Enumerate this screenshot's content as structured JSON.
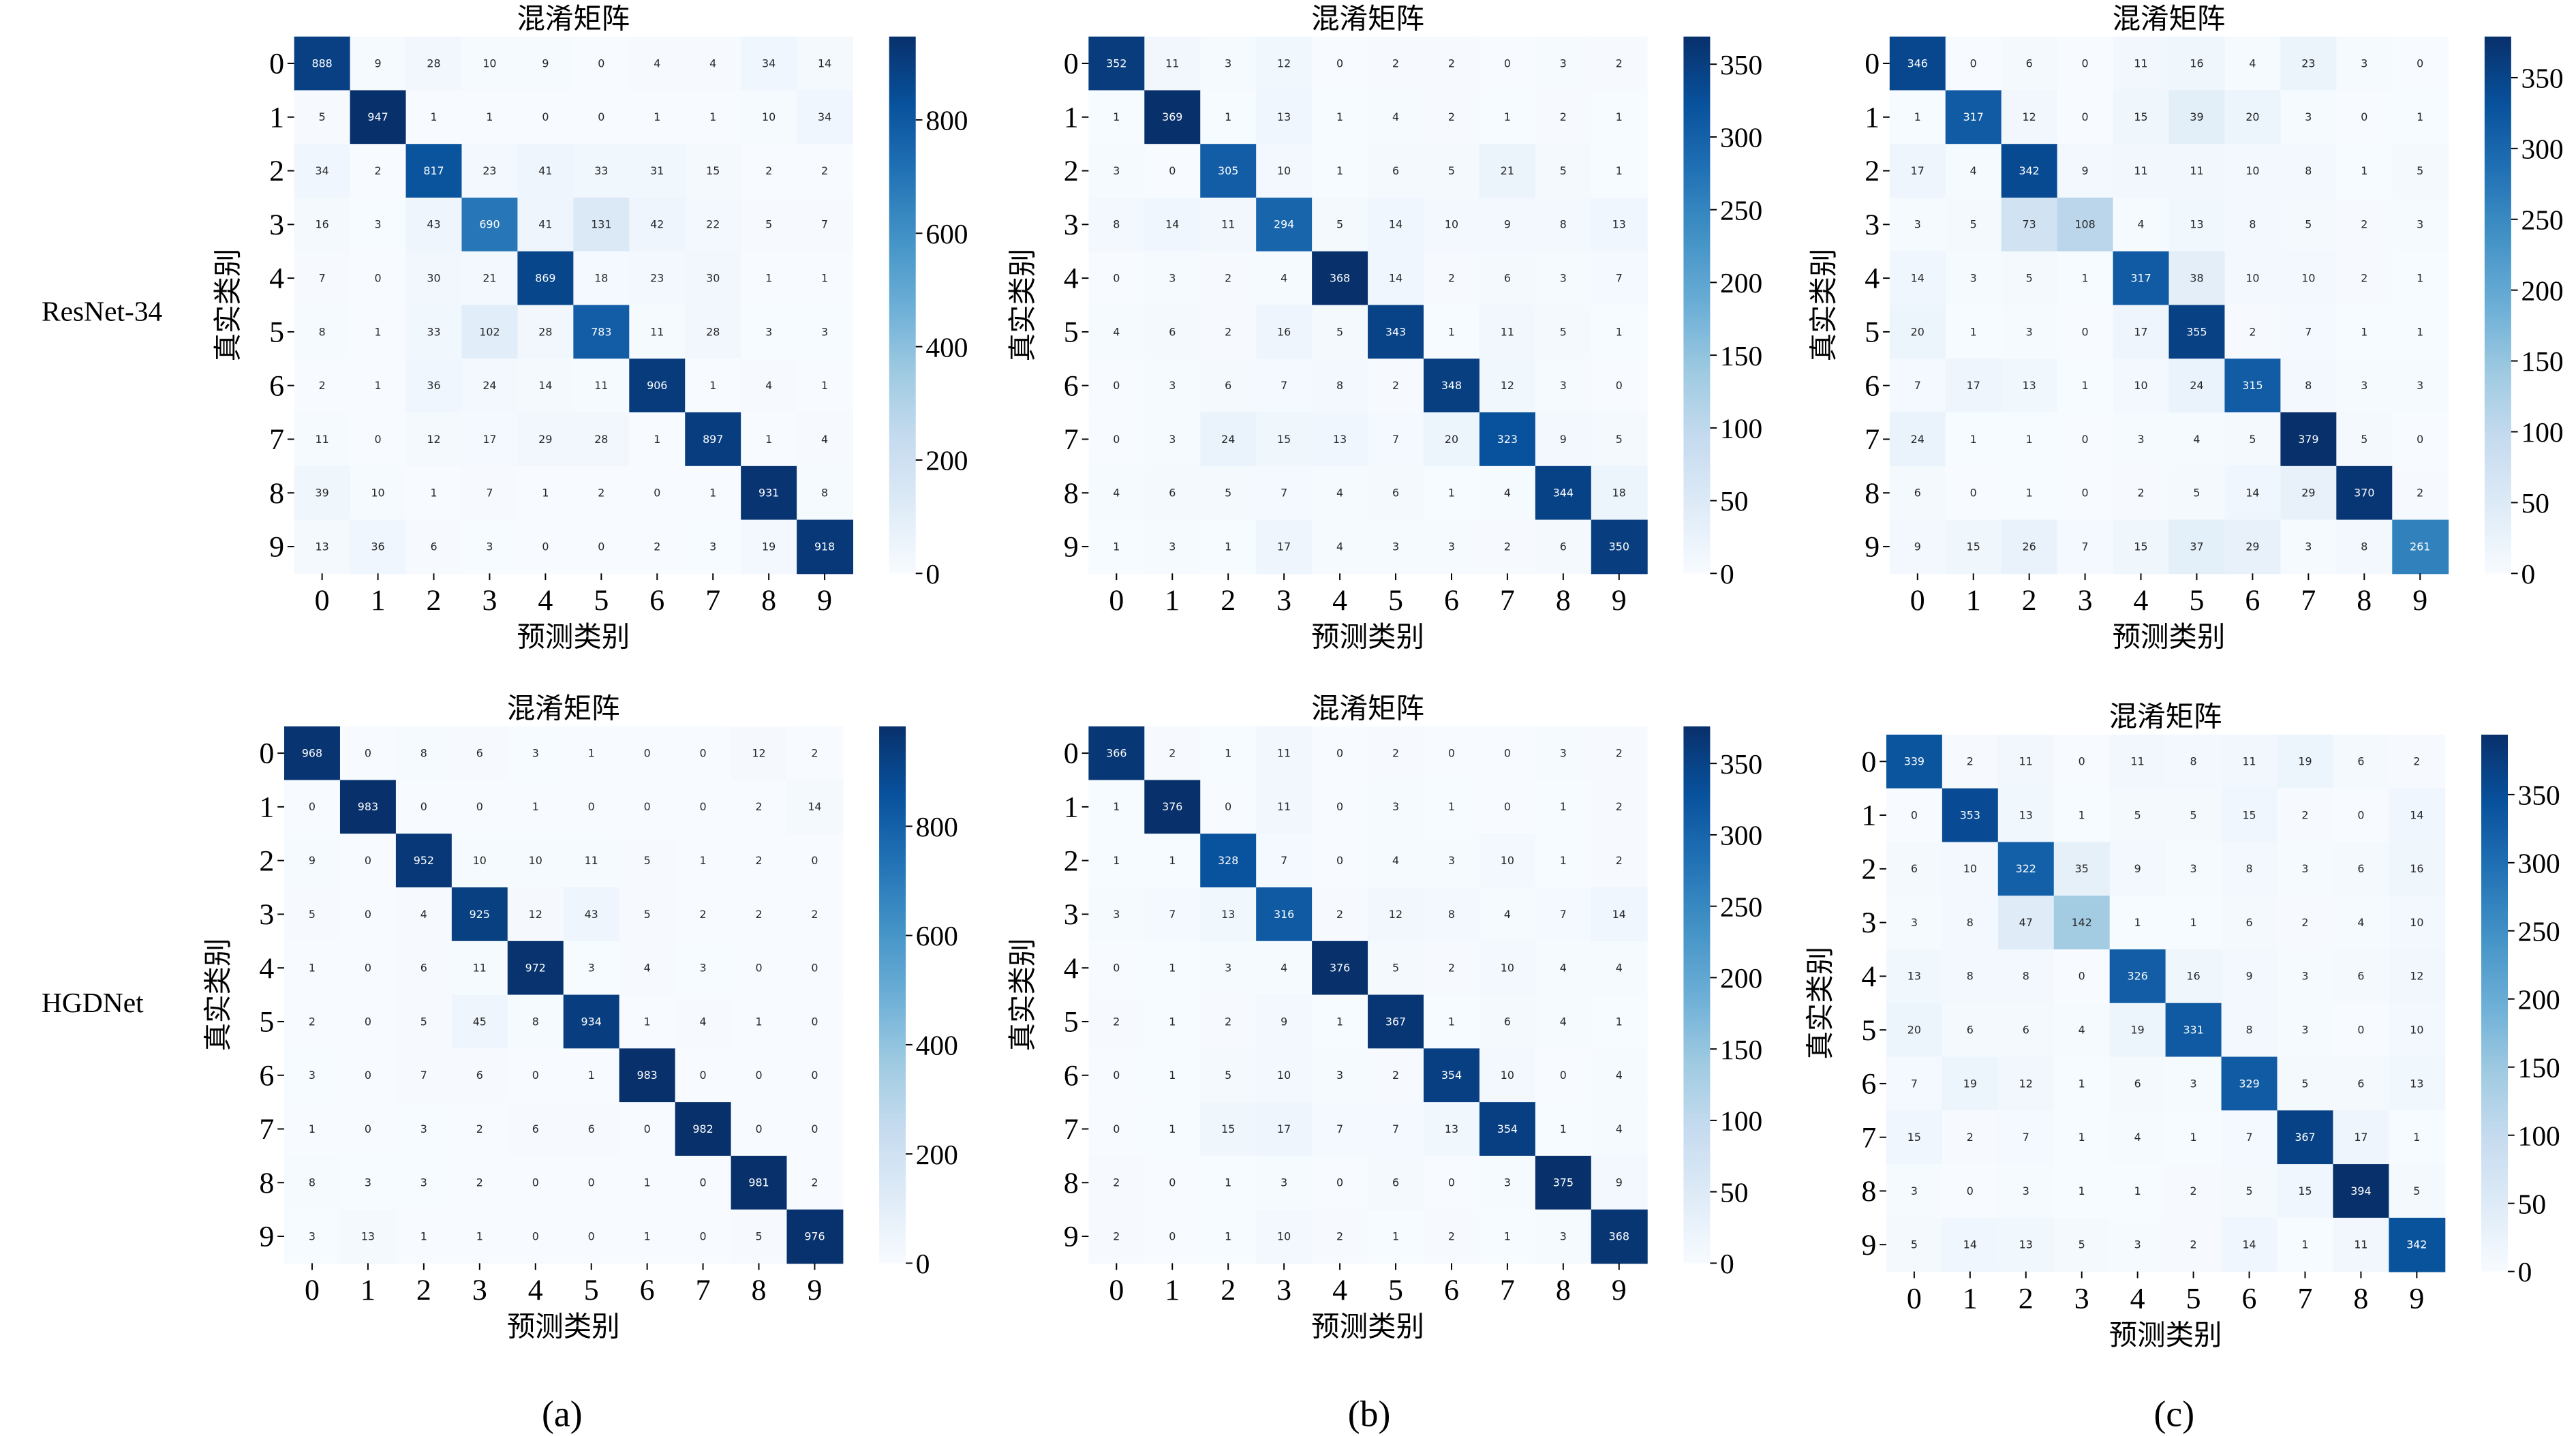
{
  "row_labels": [
    "ResNet-34",
    "HGDNet"
  ],
  "captions": [
    "(a)",
    "(b)",
    "(c)"
  ],
  "colormap": [
    "#f7fbff",
    "#deebf7",
    "#c6dbef",
    "#9ecae1",
    "#6baed6",
    "#4292c6",
    "#2171b5",
    "#08519c",
    "#08306b"
  ],
  "chart_data": [
    {
      "type": "heatmap",
      "title": "混淆矩阵",
      "xlabel": "预测类别",
      "ylabel": "真实类别",
      "xticks": [
        "0",
        "1",
        "2",
        "3",
        "4",
        "5",
        "6",
        "7",
        "8",
        "9"
      ],
      "yticks": [
        "0",
        "1",
        "2",
        "3",
        "4",
        "5",
        "6",
        "7",
        "8",
        "9"
      ],
      "vmin": 0,
      "vmax": 947,
      "colorbar_ticks": [
        "0",
        "200",
        "400",
        "600",
        "800"
      ],
      "values": [
        [
          888,
          9,
          28,
          10,
          9,
          0,
          4,
          4,
          34,
          14
        ],
        [
          5,
          947,
          1,
          1,
          0,
          0,
          1,
          1,
          10,
          34
        ],
        [
          34,
          2,
          817,
          23,
          41,
          33,
          31,
          15,
          2,
          2
        ],
        [
          16,
          3,
          43,
          690,
          41,
          131,
          42,
          22,
          5,
          7
        ],
        [
          7,
          0,
          30,
          21,
          869,
          18,
          23,
          30,
          1,
          1
        ],
        [
          8,
          1,
          33,
          102,
          28,
          783,
          11,
          28,
          3,
          3
        ],
        [
          2,
          1,
          36,
          24,
          14,
          11,
          906,
          1,
          4,
          1
        ],
        [
          11,
          0,
          12,
          17,
          29,
          28,
          1,
          897,
          1,
          4
        ],
        [
          39,
          10,
          1,
          7,
          1,
          2,
          0,
          1,
          931,
          8
        ],
        [
          13,
          36,
          6,
          3,
          0,
          0,
          2,
          3,
          19,
          918
        ]
      ]
    },
    {
      "type": "heatmap",
      "title": "混淆矩阵",
      "xlabel": "预测类别",
      "ylabel": "真实类别",
      "xticks": [
        "0",
        "1",
        "2",
        "3",
        "4",
        "5",
        "6",
        "7",
        "8",
        "9"
      ],
      "yticks": [
        "0",
        "1",
        "2",
        "3",
        "4",
        "5",
        "6",
        "7",
        "8",
        "9"
      ],
      "vmin": 0,
      "vmax": 369,
      "colorbar_ticks": [
        "0",
        "50",
        "100",
        "150",
        "200",
        "250",
        "300",
        "350"
      ],
      "values": [
        [
          352,
          11,
          3,
          12,
          0,
          2,
          2,
          0,
          3,
          2
        ],
        [
          1,
          369,
          1,
          13,
          1,
          4,
          2,
          1,
          2,
          1
        ],
        [
          3,
          0,
          305,
          10,
          1,
          6,
          5,
          21,
          5,
          1
        ],
        [
          8,
          14,
          11,
          294,
          5,
          14,
          10,
          9,
          8,
          13
        ],
        [
          0,
          3,
          2,
          4,
          368,
          14,
          2,
          6,
          3,
          7
        ],
        [
          4,
          6,
          2,
          16,
          5,
          343,
          1,
          11,
          5,
          1
        ],
        [
          0,
          3,
          6,
          7,
          8,
          2,
          348,
          12,
          3,
          0
        ],
        [
          0,
          3,
          24,
          15,
          13,
          7,
          20,
          323,
          9,
          5
        ],
        [
          4,
          6,
          5,
          7,
          4,
          6,
          1,
          4,
          344,
          18
        ],
        [
          1,
          3,
          1,
          17,
          4,
          3,
          3,
          2,
          6,
          350
        ]
      ]
    },
    {
      "type": "heatmap",
      "title": "混淆矩阵",
      "xlabel": "预测类别",
      "ylabel": "真实类别",
      "xticks": [
        "0",
        "1",
        "2",
        "3",
        "4",
        "5",
        "6",
        "7",
        "8",
        "9"
      ],
      "yticks": [
        "0",
        "1",
        "2",
        "3",
        "4",
        "5",
        "6",
        "7",
        "8",
        "9"
      ],
      "vmin": 0,
      "vmax": 379,
      "colorbar_ticks": [
        "0",
        "50",
        "100",
        "150",
        "200",
        "250",
        "300",
        "350"
      ],
      "values": [
        [
          346,
          0,
          6,
          0,
          11,
          16,
          4,
          23,
          3,
          0
        ],
        [
          1,
          317,
          12,
          0,
          15,
          39,
          20,
          3,
          0,
          1
        ],
        [
          17,
          4,
          342,
          9,
          11,
          11,
          10,
          8,
          1,
          5
        ],
        [
          3,
          5,
          73,
          108,
          4,
          13,
          8,
          5,
          2,
          3
        ],
        [
          14,
          3,
          5,
          1,
          317,
          38,
          10,
          10,
          2,
          1
        ],
        [
          20,
          1,
          3,
          0,
          17,
          355,
          2,
          7,
          1,
          1
        ],
        [
          7,
          17,
          13,
          1,
          10,
          24,
          315,
          8,
          3,
          3
        ],
        [
          24,
          1,
          1,
          0,
          3,
          4,
          5,
          379,
          5,
          0
        ],
        [
          6,
          0,
          1,
          0,
          2,
          5,
          14,
          29,
          370,
          2
        ],
        [
          9,
          15,
          26,
          7,
          15,
          37,
          29,
          3,
          8,
          261
        ]
      ]
    },
    {
      "type": "heatmap",
      "title": "混淆矩阵",
      "xlabel": "预测类别",
      "ylabel": "真实类别",
      "xticks": [
        "0",
        "1",
        "2",
        "3",
        "4",
        "5",
        "6",
        "7",
        "8",
        "9"
      ],
      "yticks": [
        "0",
        "1",
        "2",
        "3",
        "4",
        "5",
        "6",
        "7",
        "8",
        "9"
      ],
      "vmin": 0,
      "vmax": 983,
      "colorbar_ticks": [
        "0",
        "200",
        "400",
        "600",
        "800"
      ],
      "values": [
        [
          968,
          0,
          8,
          6,
          3,
          1,
          0,
          0,
          12,
          2
        ],
        [
          0,
          983,
          0,
          0,
          1,
          0,
          0,
          0,
          2,
          14
        ],
        [
          9,
          0,
          952,
          10,
          10,
          11,
          5,
          1,
          2,
          0
        ],
        [
          5,
          0,
          4,
          925,
          12,
          43,
          5,
          2,
          2,
          2
        ],
        [
          1,
          0,
          6,
          11,
          972,
          3,
          4,
          3,
          0,
          0
        ],
        [
          2,
          0,
          5,
          45,
          8,
          934,
          1,
          4,
          1,
          0
        ],
        [
          3,
          0,
          7,
          6,
          0,
          1,
          983,
          0,
          0,
          0
        ],
        [
          1,
          0,
          3,
          2,
          6,
          6,
          0,
          982,
          0,
          0
        ],
        [
          8,
          3,
          3,
          2,
          0,
          0,
          1,
          0,
          981,
          2
        ],
        [
          3,
          13,
          1,
          1,
          0,
          0,
          1,
          0,
          5,
          976
        ]
      ]
    },
    {
      "type": "heatmap",
      "title": "混淆矩阵",
      "xlabel": "预测类别",
      "ylabel": "真实类别",
      "xticks": [
        "0",
        "1",
        "2",
        "3",
        "4",
        "5",
        "6",
        "7",
        "8",
        "9"
      ],
      "yticks": [
        "0",
        "1",
        "2",
        "3",
        "4",
        "5",
        "6",
        "7",
        "8",
        "9"
      ],
      "vmin": 0,
      "vmax": 376,
      "colorbar_ticks": [
        "0",
        "50",
        "100",
        "150",
        "200",
        "250",
        "300",
        "350"
      ],
      "values": [
        [
          366,
          2,
          1,
          11,
          0,
          2,
          0,
          0,
          3,
          2
        ],
        [
          1,
          376,
          0,
          11,
          0,
          3,
          1,
          0,
          1,
          2
        ],
        [
          1,
          1,
          328,
          7,
          0,
          4,
          3,
          10,
          1,
          2
        ],
        [
          3,
          7,
          13,
          316,
          2,
          12,
          8,
          4,
          7,
          14
        ],
        [
          0,
          1,
          3,
          4,
          376,
          5,
          2,
          10,
          4,
          4
        ],
        [
          2,
          1,
          2,
          9,
          1,
          367,
          1,
          6,
          4,
          1
        ],
        [
          0,
          1,
          5,
          10,
          3,
          2,
          354,
          10,
          0,
          4
        ],
        [
          0,
          1,
          15,
          17,
          7,
          7,
          13,
          354,
          1,
          4
        ],
        [
          2,
          0,
          1,
          3,
          0,
          6,
          0,
          3,
          375,
          9
        ],
        [
          2,
          0,
          1,
          10,
          2,
          1,
          2,
          1,
          3,
          368
        ]
      ]
    },
    {
      "type": "heatmap",
      "title": "混淆矩阵",
      "xlabel": "预测类别",
      "ylabel": "真实类别",
      "xticks": [
        "0",
        "1",
        "2",
        "3",
        "4",
        "5",
        "6",
        "7",
        "8",
        "9"
      ],
      "yticks": [
        "0",
        "1",
        "2",
        "3",
        "4",
        "5",
        "6",
        "7",
        "8",
        "9"
      ],
      "vmin": 0,
      "vmax": 394,
      "colorbar_ticks": [
        "0",
        "50",
        "100",
        "150",
        "200",
        "250",
        "300",
        "350"
      ],
      "values": [
        [
          339,
          2,
          11,
          0,
          11,
          8,
          11,
          19,
          6,
          2
        ],
        [
          0,
          353,
          13,
          1,
          5,
          5,
          15,
          2,
          0,
          14
        ],
        [
          6,
          10,
          322,
          35,
          9,
          3,
          8,
          3,
          6,
          16
        ],
        [
          3,
          8,
          47,
          142,
          1,
          1,
          6,
          2,
          4,
          10
        ],
        [
          13,
          8,
          8,
          0,
          326,
          16,
          9,
          3,
          6,
          12
        ],
        [
          20,
          6,
          6,
          4,
          19,
          331,
          8,
          3,
          0,
          10
        ],
        [
          7,
          19,
          12,
          1,
          6,
          3,
          329,
          5,
          6,
          13
        ],
        [
          15,
          2,
          7,
          1,
          4,
          1,
          7,
          367,
          17,
          1
        ],
        [
          3,
          0,
          3,
          1,
          1,
          2,
          5,
          15,
          394,
          5
        ],
        [
          5,
          14,
          13,
          5,
          3,
          2,
          14,
          1,
          11,
          342
        ]
      ]
    }
  ]
}
